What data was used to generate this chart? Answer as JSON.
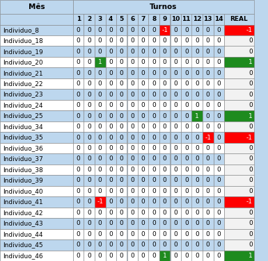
{
  "rows": [
    "Individuo_8",
    "Individuo_18",
    "Individuo_19",
    "Individuo_20",
    "Individuo_21",
    "Individuo_22",
    "Individuo_23",
    "Individuo_24",
    "Individuo_25",
    "Individuo_34",
    "Individuo_35",
    "Individuo_36",
    "Individuo_37",
    "Individuo_38",
    "Individuo_39",
    "Individuo_40",
    "Individuo_41",
    "Individuo_42",
    "Individuo_43",
    "Individuo_44",
    "Individuo_45",
    "Individuo_46"
  ],
  "cols": [
    "1",
    "2",
    "3",
    "4",
    "5",
    "6",
    "7",
    "8",
    "9",
    "10",
    "11",
    "12",
    "13",
    "14",
    "REAL"
  ],
  "data": [
    [
      0,
      0,
      0,
      0,
      0,
      0,
      0,
      0,
      -1,
      0,
      0,
      0,
      0,
      0,
      -1
    ],
    [
      0,
      0,
      0,
      0,
      0,
      0,
      0,
      0,
      0,
      0,
      0,
      0,
      0,
      0,
      0
    ],
    [
      0,
      0,
      0,
      0,
      0,
      0,
      0,
      0,
      0,
      0,
      0,
      0,
      0,
      0,
      0
    ],
    [
      0,
      0,
      1,
      0,
      0,
      0,
      0,
      0,
      0,
      0,
      0,
      0,
      0,
      0,
      1
    ],
    [
      0,
      0,
      0,
      0,
      0,
      0,
      0,
      0,
      0,
      0,
      0,
      0,
      0,
      0,
      0
    ],
    [
      0,
      0,
      0,
      0,
      0,
      0,
      0,
      0,
      0,
      0,
      0,
      0,
      0,
      0,
      0
    ],
    [
      0,
      0,
      0,
      0,
      0,
      0,
      0,
      0,
      0,
      0,
      0,
      0,
      0,
      0,
      0
    ],
    [
      0,
      0,
      0,
      0,
      0,
      0,
      0,
      0,
      0,
      0,
      0,
      0,
      0,
      0,
      0
    ],
    [
      0,
      0,
      0,
      0,
      0,
      0,
      0,
      0,
      0,
      0,
      0,
      1,
      0,
      0,
      1
    ],
    [
      0,
      0,
      0,
      0,
      0,
      0,
      0,
      0,
      0,
      0,
      0,
      0,
      0,
      0,
      0
    ],
    [
      0,
      0,
      0,
      0,
      0,
      0,
      0,
      0,
      0,
      0,
      0,
      0,
      -1,
      0,
      -1
    ],
    [
      0,
      0,
      0,
      0,
      0,
      0,
      0,
      0,
      0,
      0,
      0,
      0,
      0,
      0,
      0
    ],
    [
      0,
      0,
      0,
      0,
      0,
      0,
      0,
      0,
      0,
      0,
      0,
      0,
      0,
      0,
      0
    ],
    [
      0,
      0,
      0,
      0,
      0,
      0,
      0,
      0,
      0,
      0,
      0,
      0,
      0,
      0,
      0
    ],
    [
      0,
      0,
      0,
      0,
      0,
      0,
      0,
      0,
      0,
      0,
      0,
      0,
      0,
      0,
      0
    ],
    [
      0,
      0,
      0,
      0,
      0,
      0,
      0,
      0,
      0,
      0,
      0,
      0,
      0,
      0,
      0
    ],
    [
      0,
      0,
      -1,
      0,
      0,
      0,
      0,
      0,
      0,
      0,
      0,
      0,
      0,
      0,
      -1
    ],
    [
      0,
      0,
      0,
      0,
      0,
      0,
      0,
      0,
      0,
      0,
      0,
      0,
      0,
      0,
      0
    ],
    [
      0,
      0,
      0,
      0,
      0,
      0,
      0,
      0,
      0,
      0,
      0,
      0,
      0,
      0,
      0
    ],
    [
      0,
      0,
      0,
      0,
      0,
      0,
      0,
      0,
      0,
      0,
      0,
      0,
      0,
      0,
      0
    ],
    [
      0,
      0,
      0,
      0,
      0,
      0,
      0,
      0,
      0,
      0,
      0,
      0,
      0,
      0,
      0
    ],
    [
      0,
      0,
      0,
      0,
      0,
      0,
      0,
      0,
      1,
      0,
      0,
      0,
      0,
      0,
      1
    ]
  ],
  "header_top": "Turnos",
  "header_left": "Mês",
  "bg_overall": "#bdd7ee",
  "bg_header": "#bdd7ee",
  "bg_turnos": "#bdd7ee",
  "bg_col_header": "#bdd7ee",
  "bg_row_blue": "#bdd7ee",
  "bg_row_white": "#ffffff",
  "bg_real_white": "#f2f2f2",
  "color_red": "#ff0000",
  "color_green": "#1e8b1e",
  "color_real_red": "#ff0000",
  "color_real_green": "#1e8b1e",
  "text_color_normal": "#000000",
  "text_color_highlight": "#ffffff",
  "font_size": 6.5,
  "font_size_header": 7.5,
  "fig_width": 3.85,
  "fig_height": 3.76,
  "dpi": 100
}
